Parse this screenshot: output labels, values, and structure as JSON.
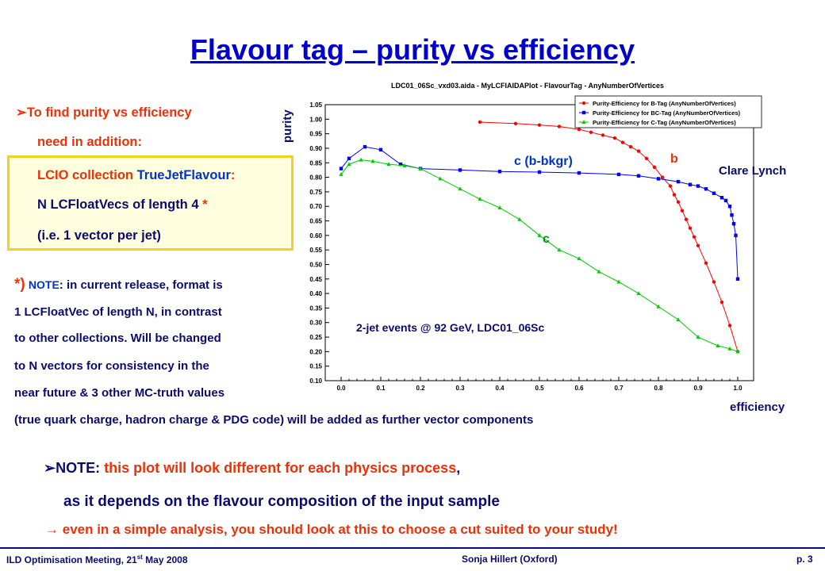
{
  "slide": {
    "title": "Flavour tag – purity vs efficiency",
    "bullets": {
      "arrow1": "➢",
      "line1": "To find purity vs efficiency",
      "line2": "need in addition:",
      "line3a": "LCIO collection ",
      "line3b": "TrueJetFlavour",
      "line3c": ":",
      "line4a": "N LCFloatVecs of length 4 ",
      "line4b": "*",
      "line5": "(i.e. 1 vector per jet)"
    },
    "note": {
      "star": "*)",
      "label": "NOTE",
      "line1": ": in current release, format is",
      "line2": "1 LCFloatVec of length N, in contrast",
      "line3": "to other collections. Will be changed",
      "line4": "to N vectors for consistency in the",
      "line5": "near future & 3 other MC-truth values",
      "line6": "(true quark charge, hadron charge & PDG code) will be added as further vector components"
    },
    "bottom": {
      "arrow": "➢",
      "label": "NOTE",
      "colon": ": ",
      "text1": "this plot will look different for each physics process",
      "comma": ",",
      "text2": "as it depends on the flavour composition of the input sample",
      "arrow2": "→",
      "text3": "even in a simple analysis, you should look at this to choose a cut suited to your study!"
    },
    "footer": {
      "left_a": "ILD Optimisation Meeting, 21",
      "left_sup": "st",
      "left_b": " May 2008",
      "center": "Sonja Hillert (Oxford)",
      "right": "p. 3"
    }
  },
  "chart_data": {
    "type": "scatter",
    "title": "LDC01_06Sc_vxd03.aida - MyLCFIAIDAPlot - FlavourTag - AnyNumberOfVertices",
    "xlabel": "efficiency",
    "ylabel": "purity",
    "xlim": [
      -0.04,
      1.04
    ],
    "ylim": [
      0.1,
      1.05
    ],
    "xticks": [
      "0.0",
      "0.1",
      "0.2",
      "0.3",
      "0.4",
      "0.5",
      "0.6",
      "0.7",
      "0.8",
      "0.9",
      "1.0"
    ],
    "yticks": [
      "0.10",
      "0.15",
      "0.20",
      "0.25",
      "0.30",
      "0.35",
      "0.40",
      "0.45",
      "0.50",
      "0.55",
      "0.60",
      "0.65",
      "0.70",
      "0.75",
      "0.80",
      "0.85",
      "0.90",
      "0.95",
      "1.00",
      "1.05"
    ],
    "grid": false,
    "legend_position": "top-right",
    "annotations": {
      "b": "b",
      "c_bkgr": "c (b-bkgr)",
      "c": "c",
      "author": "Clare Lynch",
      "sample": "2-jet events @ 92 GeV, LDC01_06Sc"
    },
    "series": [
      {
        "name": "Purity-Efficiency for B-Tag (AnyNumberOfVertices)",
        "color": "#ff0000",
        "marker": "circle",
        "x": [
          0.35,
          0.44,
          0.5,
          0.55,
          0.6,
          0.63,
          0.66,
          0.69,
          0.71,
          0.73,
          0.75,
          0.77,
          0.79,
          0.81,
          0.83,
          0.84,
          0.85,
          0.86,
          0.87,
          0.88,
          0.89,
          0.9,
          0.92,
          0.94,
          0.96,
          0.98,
          1.0
        ],
        "y": [
          0.99,
          0.985,
          0.98,
          0.975,
          0.965,
          0.955,
          0.945,
          0.935,
          0.92,
          0.905,
          0.89,
          0.865,
          0.835,
          0.8,
          0.77,
          0.74,
          0.715,
          0.685,
          0.655,
          0.625,
          0.595,
          0.565,
          0.505,
          0.44,
          0.37,
          0.29,
          0.2
        ]
      },
      {
        "name": "Purity-Efficiency for BC-Tag (AnyNumberOfVertices)",
        "color": "#0000ff",
        "marker": "square",
        "x": [
          0.0,
          0.02,
          0.06,
          0.1,
          0.15,
          0.2,
          0.3,
          0.4,
          0.5,
          0.6,
          0.7,
          0.75,
          0.8,
          0.85,
          0.88,
          0.9,
          0.92,
          0.94,
          0.96,
          0.97,
          0.98,
          0.985,
          0.99,
          0.995,
          1.0
        ],
        "y": [
          0.83,
          0.865,
          0.905,
          0.895,
          0.845,
          0.83,
          0.825,
          0.82,
          0.818,
          0.815,
          0.81,
          0.805,
          0.795,
          0.785,
          0.775,
          0.77,
          0.76,
          0.745,
          0.73,
          0.72,
          0.7,
          0.67,
          0.64,
          0.6,
          0.45
        ]
      },
      {
        "name": "Purity-Efficiency for C-Tag (AnyNumberOfVertices)",
        "color": "#00cc00",
        "marker": "triangle",
        "x": [
          0.0,
          0.02,
          0.05,
          0.08,
          0.12,
          0.16,
          0.2,
          0.25,
          0.3,
          0.35,
          0.4,
          0.45,
          0.5,
          0.55,
          0.6,
          0.65,
          0.7,
          0.75,
          0.8,
          0.85,
          0.9,
          0.95,
          0.98,
          1.0
        ],
        "y": [
          0.81,
          0.845,
          0.86,
          0.855,
          0.845,
          0.84,
          0.83,
          0.795,
          0.76,
          0.725,
          0.695,
          0.655,
          0.6,
          0.55,
          0.52,
          0.475,
          0.44,
          0.4,
          0.355,
          0.31,
          0.25,
          0.22,
          0.21,
          0.2
        ]
      }
    ]
  }
}
